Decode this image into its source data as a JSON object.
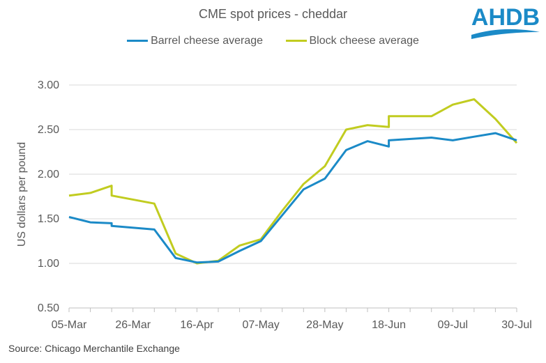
{
  "colors": {
    "barrel": "#1b8ac7",
    "block": "#c1cc20",
    "logo": "#1b8ac7",
    "grid": "#d9d9d9",
    "text": "#595959"
  },
  "logo": {
    "text": "AHDB"
  },
  "source": "Source: Chicago Merchantile Exchange",
  "chart_data": {
    "type": "line",
    "title": "CME spot prices - cheddar",
    "xlabel": "",
    "ylabel": "US dollars per pound",
    "ylim": [
      0.5,
      3.0
    ],
    "yticks": [
      "0.50",
      "1.00",
      "1.50",
      "2.00",
      "2.50",
      "3.00"
    ],
    "x_start": "05-Mar",
    "x_end": "30-Jul",
    "xtick_labels": [
      "05-Mar",
      "26-Mar",
      "16-Apr",
      "07-May",
      "28-May",
      "18-Jun",
      "09-Jul",
      "30-Jul"
    ],
    "grid": true,
    "legend_position": "top",
    "series": [
      {
        "name": "Barrel cheese average",
        "points": [
          [
            "05-Mar",
            1.52
          ],
          [
            "12-Mar",
            1.46
          ],
          [
            "19-Mar",
            1.45
          ],
          [
            "19-Mar",
            1.42
          ],
          [
            "02-Apr",
            1.38
          ],
          [
            "09-Apr",
            1.06
          ],
          [
            "16-Apr",
            1.01
          ],
          [
            "23-Apr",
            1.02
          ],
          [
            "30-Apr",
            1.14
          ],
          [
            "07-May",
            1.25
          ],
          [
            "14-May",
            1.54
          ],
          [
            "21-May",
            1.83
          ],
          [
            "28-May",
            1.95
          ],
          [
            "04-Jun",
            2.27
          ],
          [
            "11-Jun",
            2.37
          ],
          [
            "18-Jun",
            2.31
          ],
          [
            "18-Jun",
            2.38
          ],
          [
            "02-Jul",
            2.41
          ],
          [
            "09-Jul",
            2.38
          ],
          [
            "16-Jul",
            2.42
          ],
          [
            "23-Jul",
            2.46
          ],
          [
            "30-Jul",
            2.38
          ]
        ]
      },
      {
        "name": "Block cheese average",
        "points": [
          [
            "05-Mar",
            1.76
          ],
          [
            "12-Mar",
            1.79
          ],
          [
            "19-Mar",
            1.87
          ],
          [
            "19-Mar",
            1.76
          ],
          [
            "02-Apr",
            1.67
          ],
          [
            "09-Apr",
            1.11
          ],
          [
            "16-Apr",
            1.0
          ],
          [
            "23-Apr",
            1.03
          ],
          [
            "30-Apr",
            1.2
          ],
          [
            "07-May",
            1.27
          ],
          [
            "14-May",
            1.59
          ],
          [
            "21-May",
            1.89
          ],
          [
            "28-May",
            2.09
          ],
          [
            "04-Jun",
            2.5
          ],
          [
            "11-Jun",
            2.55
          ],
          [
            "18-Jun",
            2.53
          ],
          [
            "18-Jun",
            2.65
          ],
          [
            "02-Jul",
            2.65
          ],
          [
            "09-Jul",
            2.78
          ],
          [
            "16-Jul",
            2.84
          ],
          [
            "23-Jul",
            2.62
          ],
          [
            "30-Jul",
            2.35
          ]
        ]
      }
    ]
  }
}
